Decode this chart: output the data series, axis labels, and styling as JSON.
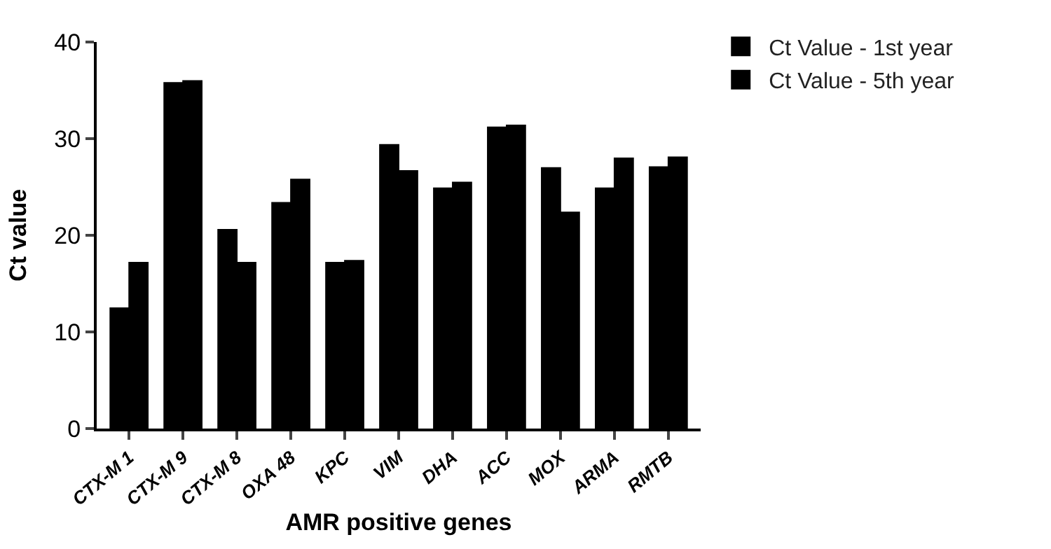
{
  "chart_data": {
    "type": "bar",
    "xlabel": "AMR positive genes",
    "ylabel": "Ct value",
    "categories": [
      "CTX-M 1",
      "CTX-M 9",
      "CTX-M 8",
      "OXA 48",
      "KPC",
      "VIM",
      "DHA",
      "ACC",
      "MOX",
      "ARMA",
      "RMTB"
    ],
    "series": [
      {
        "name": "Ct Value - 1st year",
        "color": "#000000",
        "values": [
          12.4,
          35.7,
          20.5,
          23.3,
          17.1,
          29.3,
          24.8,
          31.1,
          26.9,
          24.8,
          27.0
        ]
      },
      {
        "name": "Ct Value - 5th year",
        "color": "#000000",
        "values": [
          17.1,
          35.9,
          17.1,
          25.7,
          17.3,
          26.6,
          25.4,
          31.3,
          22.3,
          27.9,
          28.0
        ]
      }
    ],
    "ylim": [
      0,
      40
    ],
    "yticks": [
      0,
      10,
      20,
      30,
      40
    ],
    "legend": "top right"
  }
}
